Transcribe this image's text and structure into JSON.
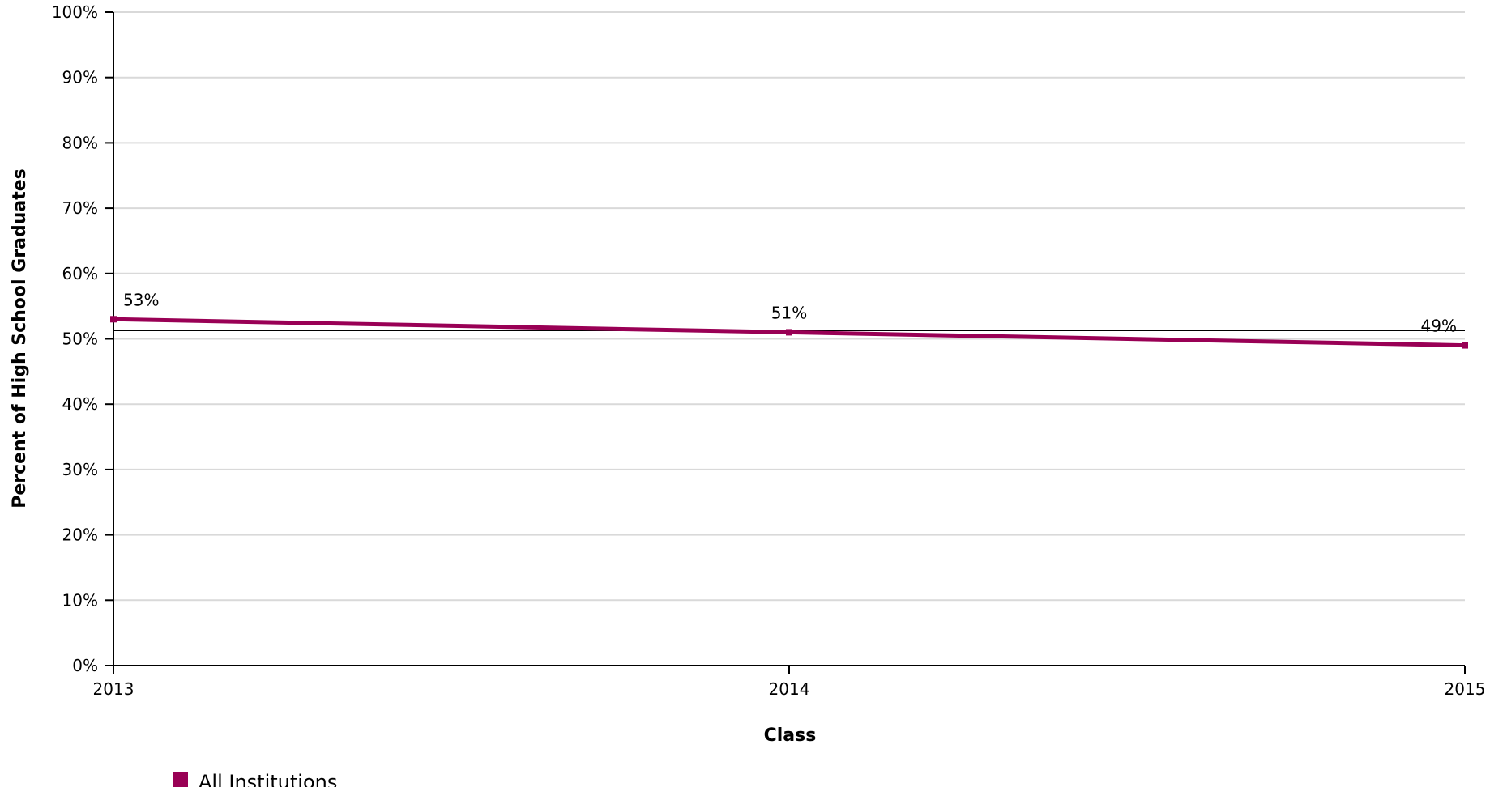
{
  "chart_data": {
    "type": "line",
    "xlabel": "Class",
    "ylabel": "Percent of High School Graduates",
    "categories": [
      "2013",
      "2014",
      "2015"
    ],
    "series": [
      {
        "name": "All Institutions",
        "color": "#990055",
        "values": [
          53,
          51,
          49
        ],
        "labels": [
          "53%",
          "51%",
          "49%"
        ]
      }
    ],
    "reference_line": {
      "value": 51.3,
      "color": "#000000"
    },
    "ylim": [
      0,
      100
    ],
    "yticks": [
      0,
      10,
      20,
      30,
      40,
      50,
      60,
      70,
      80,
      90,
      100
    ],
    "ytick_labels": [
      "0%",
      "10%",
      "20%",
      "30%",
      "40%",
      "50%",
      "60%",
      "70%",
      "80%",
      "90%",
      "100%"
    ],
    "grid": true,
    "legend_position": "bottom-left"
  }
}
